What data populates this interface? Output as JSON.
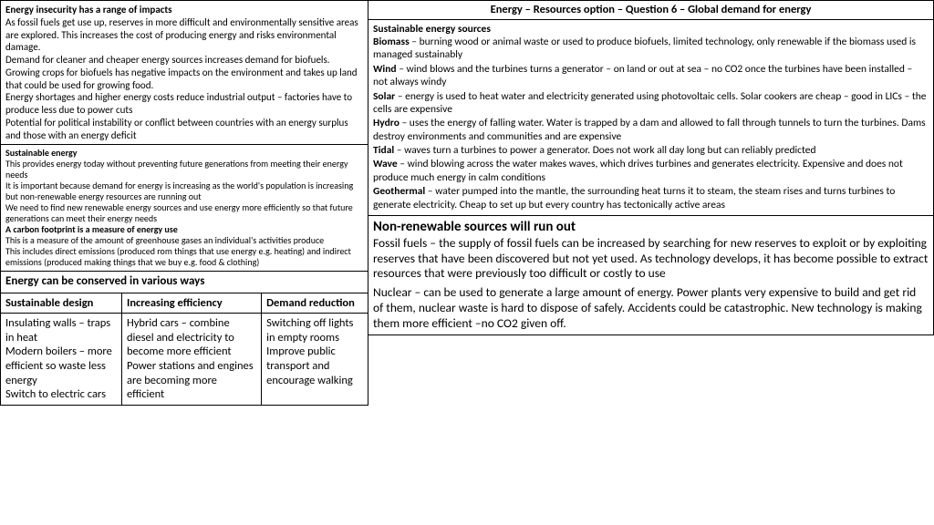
{
  "title": "Energy – Resources option – Question 6 – Global demand for energy",
  "left": {
    "insecurity": {
      "heading": "Energy insecurity has a range of impacts",
      "p1": "As fossil fuels get use up, reserves in more difficult and environmentally sensitive areas are explored. This increases the cost of producing energy and risks environmental damage.",
      "p2": "Demand for cleaner and cheaper energy sources increases demand for biofuels. Growing crops for biofuels has negative impacts on the environment and takes up land that could be used for growing food.",
      "p3": "Energy shortages and higher energy costs reduce industrial output – factories have to produce less due to power cuts",
      "p4": "Potential for political instability or conflict between countries with an energy surplus and those with an energy deficit"
    },
    "sustainable": {
      "heading": "Sustainable energy",
      "p1": "This provides energy today without preventing future generations from meeting their energy needs",
      "p2": "It is important because demand for energy is increasing as the world's population is increasing but non-renewable energy resources are running out",
      "p3": "We need to find new renewable energy sources and use energy more efficiently so that future generations can meet their energy needs",
      "h2": "A carbon footprint is a measure of energy use",
      "p4": "This is a measure of the amount of greenhouse gases an individual's activities produce",
      "p5": "This includes direct emissions (produced rom things that use energy e.g. heating) and indirect emissions (produced making things that we buy e.g. food & clothing)"
    },
    "conserve": {
      "title": "Energy can be conserved in various ways",
      "cols": [
        "Sustainable design",
        "Increasing efficiency",
        "Demand reduction"
      ],
      "col1": "Insulating walls – traps in heat\nModern boilers – more efficient so waste less energy\nSwitch to electric cars",
      "col2": "Hybrid cars – combine diesel and electricity to become more efficient\nPower stations and engines are becoming more efficient",
      "col3": "Switching off lights in empty rooms\nImprove public transport and encourage walking"
    }
  },
  "right": {
    "sources": {
      "heading": "Sustainable energy sources",
      "items": [
        {
          "term": "Biomass",
          "body": " – burning wood or animal waste or used to produce biofuels, limited technology, only renewable if the biomass used is managed sustainably"
        },
        {
          "term": "Wind",
          "body": " – wind blows and the turbines turns a generator – on land or out at sea – no CO2 once the turbines have been installed – not always windy"
        },
        {
          "term": "Solar",
          "body": " – energy is used to heat water and electricity generated using photovoltaic cells. Solar cookers are cheap – good in LICs – the cells are expensive"
        },
        {
          "term": "Hydro",
          "body": " – uses the energy of falling water. Water is trapped by a dam and allowed to fall through tunnels to turn the turbines. Dams destroy environments and communities and are expensive"
        },
        {
          "term": "Tidal",
          "body": " – waves turn a turbines to power a generator. Does not work all day long but can reliably predicted"
        },
        {
          "term": "Wave",
          "body": " – wind blowing across the water makes waves, which drives turbines and generates electricity. Expensive and does not produce much energy in calm conditions"
        },
        {
          "term": "Geothermal",
          "body": " – water pumped into the mantle, the surrounding heat turns it to steam, the steam rises and turns turbines to generate electricity. Cheap to set up but every country has tectonically active areas"
        }
      ]
    },
    "nonrenew": {
      "heading": "Non-renewable sources will run out",
      "p1": "Fossil fuels – the supply of fossil fuels can be increased by searching for new reserves to exploit or by exploiting reserves that have been discovered but not yet used. As technology develops, it has become possible to extract resources that were previously too difficult or costly to use",
      "p2": "Nuclear – can be used to generate a large amount of energy. Power plants very expensive to build and get rid of them, nuclear waste is hard to dispose of safely. Accidents could be catastrophic. New technology is making them more efficient –no CO2 given off."
    }
  }
}
